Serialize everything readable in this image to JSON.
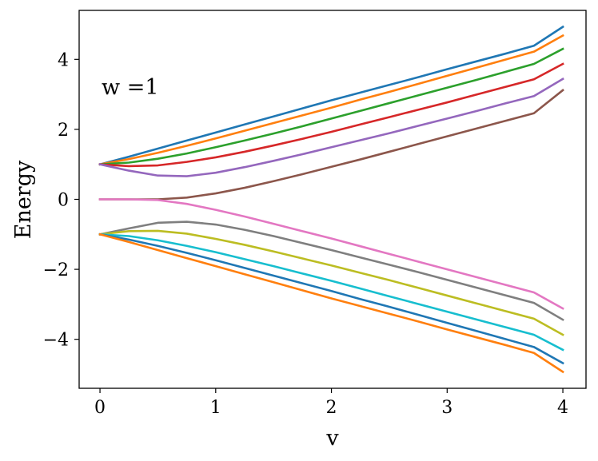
{
  "chart_data": {
    "type": "line",
    "title": "",
    "xlabel": "v",
    "ylabel": "Energy",
    "annotation": "w =1",
    "xlim": [
      -0.18,
      4.2
    ],
    "ylim": [
      -5.4,
      5.4
    ],
    "xticks": [
      0,
      1,
      2,
      3,
      4
    ],
    "yticks": [
      -4,
      -2,
      0,
      2,
      4
    ],
    "xtick_labels": [
      "0",
      "1",
      "2",
      "3",
      "4"
    ],
    "ytick_labels": [
      "−4",
      "−2",
      "0",
      "2",
      "4"
    ],
    "grid": false,
    "legend": "none",
    "x": [
      0,
      0.25,
      0.5,
      0.75,
      1,
      1.25,
      1.5,
      1.75,
      2,
      2.25,
      2.5,
      2.75,
      3,
      3.25,
      3.5,
      3.75,
      4
    ],
    "series": [
      {
        "color": "#1f77b4",
        "values": [
          1.0,
          1.22,
          1.45,
          1.68,
          1.91,
          2.14,
          2.37,
          2.6,
          2.83,
          3.05,
          3.27,
          3.49,
          3.72,
          3.94,
          4.16,
          4.39,
          4.93
        ]
      },
      {
        "color": "#ff7f0e",
        "values": [
          1.0,
          1.15,
          1.33,
          1.53,
          1.74,
          1.96,
          2.18,
          2.4,
          2.62,
          2.85,
          3.07,
          3.3,
          3.53,
          3.76,
          3.99,
          4.22,
          4.68
        ]
      },
      {
        "color": "#2ca02c",
        "values": [
          1.0,
          1.05,
          1.16,
          1.31,
          1.49,
          1.68,
          1.88,
          2.09,
          2.31,
          2.53,
          2.75,
          2.97,
          3.19,
          3.41,
          3.64,
          3.87,
          4.3
        ]
      },
      {
        "color": "#d62728",
        "values": [
          1.0,
          0.95,
          0.97,
          1.07,
          1.2,
          1.36,
          1.54,
          1.73,
          1.93,
          2.14,
          2.35,
          2.56,
          2.77,
          2.99,
          3.21,
          3.43,
          3.87
        ]
      },
      {
        "color": "#9467bd",
        "values": [
          1.0,
          0.82,
          0.68,
          0.66,
          0.76,
          0.92,
          1.1,
          1.29,
          1.49,
          1.69,
          1.89,
          2.1,
          2.31,
          2.52,
          2.74,
          2.95,
          3.44
        ]
      },
      {
        "color": "#8c564b",
        "values": [
          0.0,
          0.0,
          0.0,
          0.05,
          0.17,
          0.33,
          0.52,
          0.72,
          0.93,
          1.14,
          1.36,
          1.58,
          1.8,
          2.02,
          2.24,
          2.46,
          3.12
        ]
      },
      {
        "color": "#e377c2",
        "values": [
          0.0,
          0.0,
          -0.02,
          -0.13,
          -0.3,
          -0.49,
          -0.7,
          -0.91,
          -1.12,
          -1.34,
          -1.56,
          -1.78,
          -2.0,
          -2.22,
          -2.44,
          -2.66,
          -3.12
        ]
      },
      {
        "color": "#7f7f7f",
        "values": [
          -1.0,
          -0.83,
          -0.67,
          -0.64,
          -0.72,
          -0.87,
          -1.05,
          -1.25,
          -1.45,
          -1.66,
          -1.87,
          -2.08,
          -2.3,
          -2.52,
          -2.74,
          -2.96,
          -3.44
        ]
      },
      {
        "color": "#bcbd22",
        "values": [
          -1.0,
          -0.91,
          -0.9,
          -0.98,
          -1.13,
          -1.3,
          -1.49,
          -1.69,
          -1.89,
          -2.1,
          -2.31,
          -2.53,
          -2.75,
          -2.97,
          -3.19,
          -3.41,
          -3.87
        ]
      },
      {
        "color": "#17becf",
        "values": [
          -1.0,
          -1.05,
          -1.17,
          -1.33,
          -1.51,
          -1.71,
          -1.91,
          -2.12,
          -2.33,
          -2.55,
          -2.77,
          -2.99,
          -3.21,
          -3.43,
          -3.65,
          -3.87,
          -4.3
        ]
      },
      {
        "color": "#1f77b4",
        "values": [
          -1.0,
          -1.15,
          -1.33,
          -1.53,
          -1.74,
          -1.96,
          -2.18,
          -2.4,
          -2.62,
          -2.85,
          -3.07,
          -3.3,
          -3.53,
          -3.76,
          -3.99,
          -4.22,
          -4.68
        ]
      },
      {
        "color": "#ff7f0e",
        "values": [
          -1.0,
          -1.22,
          -1.45,
          -1.68,
          -1.91,
          -2.14,
          -2.37,
          -2.6,
          -2.83,
          -3.05,
          -3.27,
          -3.49,
          -3.72,
          -3.94,
          -4.16,
          -4.39,
          -4.93
        ]
      }
    ]
  }
}
